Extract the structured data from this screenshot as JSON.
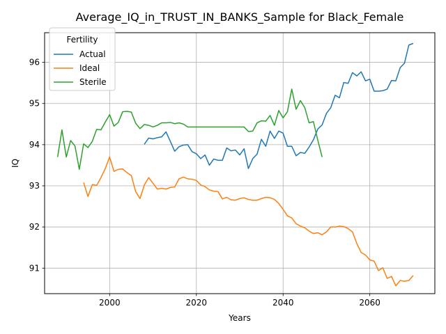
{
  "chart_data": {
    "type": "line",
    "title": "Average_IQ_in_TRUST_IN_BANKS_Sample for Black_Female",
    "xlabel": "Years",
    "ylabel": "IQ",
    "xlim": [
      1985,
      2075
    ],
    "ylim": [
      90.38,
      96.72
    ],
    "x_ticks": [
      2000,
      2020,
      2040,
      2060
    ],
    "y_ticks": [
      91,
      92,
      93,
      94,
      95,
      96
    ],
    "grid": true,
    "legend": {
      "title": "Fertility",
      "position": "upper-left"
    },
    "series": [
      {
        "name": "Actual",
        "color": "#1f77b4",
        "x": [
          2008,
          2009,
          2010,
          2011,
          2012,
          2013,
          2014,
          2015,
          2016,
          2017,
          2018,
          2019,
          2020,
          2021,
          2022,
          2023,
          2024,
          2025,
          2026,
          2027,
          2028,
          2029,
          2030,
          2031,
          2032,
          2033,
          2034,
          2035,
          2036,
          2037,
          2038,
          2039,
          2040,
          2041,
          2042,
          2043,
          2044,
          2045,
          2046,
          2047,
          2048,
          2049,
          2050,
          2051,
          2052,
          2053,
          2054,
          2055,
          2056,
          2057,
          2058,
          2059,
          2060,
          2061,
          2062,
          2063,
          2064,
          2065,
          2066,
          2067,
          2068,
          2069,
          2070
        ],
        "y": [
          94.01,
          94.16,
          94.14,
          94.17,
          94.19,
          94.31,
          94.08,
          93.84,
          93.95,
          93.99,
          94.0,
          93.83,
          93.78,
          93.66,
          93.75,
          93.5,
          93.65,
          93.62,
          93.62,
          93.92,
          93.85,
          93.87,
          93.75,
          93.9,
          93.42,
          93.66,
          93.77,
          94.13,
          93.96,
          94.33,
          94.15,
          94.33,
          94.28,
          93.96,
          93.96,
          93.73,
          93.81,
          93.79,
          93.94,
          94.12,
          94.38,
          94.48,
          94.76,
          94.9,
          95.2,
          95.14,
          95.51,
          95.49,
          95.75,
          95.67,
          95.77,
          95.55,
          95.59,
          95.3,
          95.3,
          95.31,
          95.35,
          95.56,
          95.55,
          95.87,
          95.98,
          96.42,
          96.46
        ]
      },
      {
        "name": "Ideal",
        "color": "#ff7f0e",
        "x": [
          1994,
          1995,
          1996,
          1997,
          1998,
          1999,
          2000,
          2001,
          2002,
          2003,
          2004,
          2005,
          2006,
          2007,
          2008,
          2009,
          2010,
          2011,
          2012,
          2013,
          2014,
          2015,
          2016,
          2017,
          2018,
          2019,
          2020,
          2021,
          2022,
          2023,
          2024,
          2025,
          2026,
          2027,
          2028,
          2029,
          2030,
          2031,
          2032,
          2033,
          2034,
          2035,
          2036,
          2037,
          2038,
          2039,
          2040,
          2041,
          2042,
          2043,
          2044,
          2045,
          2046,
          2047,
          2048,
          2049,
          2050,
          2051,
          2052,
          2053,
          2054,
          2055,
          2056,
          2057,
          2058,
          2059,
          2060,
          2061,
          2062,
          2063,
          2064,
          2065,
          2066,
          2067,
          2068,
          2069,
          2070
        ],
        "y": [
          93.08,
          92.74,
          93.03,
          93.01,
          93.2,
          93.42,
          93.7,
          93.35,
          93.4,
          93.41,
          93.32,
          93.25,
          92.86,
          92.69,
          93.02,
          93.2,
          93.06,
          92.92,
          92.94,
          92.92,
          92.96,
          92.97,
          93.17,
          93.21,
          93.17,
          93.16,
          93.13,
          93.02,
          92.98,
          92.9,
          92.87,
          92.86,
          92.68,
          92.72,
          92.66,
          92.65,
          92.69,
          92.71,
          92.67,
          92.65,
          92.65,
          92.69,
          92.72,
          92.71,
          92.67,
          92.57,
          92.43,
          92.27,
          92.22,
          92.08,
          92.02,
          91.98,
          91.9,
          91.84,
          91.86,
          91.81,
          91.88,
          92.0,
          92.0,
          92.02,
          92.01,
          91.96,
          91.88,
          91.6,
          91.38,
          91.32,
          91.2,
          91.17,
          90.94,
          91.01,
          90.75,
          90.8,
          90.57,
          90.7,
          90.68,
          90.7,
          90.82
        ]
      },
      {
        "name": "Sterile",
        "color": "#2ca02c",
        "x": [
          1988,
          1989,
          1990,
          1991,
          1992,
          1993,
          1994,
          1995,
          1996,
          1997,
          1998,
          1999,
          2000,
          2001,
          2002,
          2003,
          2004,
          2005,
          2006,
          2007,
          2008,
          2009,
          2010,
          2011,
          2012,
          2013,
          2014,
          2015,
          2016,
          2017,
          2018,
          2019,
          2020,
          2021,
          2022,
          2023,
          2024,
          2025,
          2026,
          2027,
          2028,
          2029,
          2030,
          2031,
          2032,
          2033,
          2034,
          2035,
          2036,
          2037,
          2038,
          2039,
          2040,
          2041,
          2042,
          2043,
          2044,
          2045,
          2046,
          2047,
          2048,
          2049
        ],
        "y": [
          93.7,
          94.36,
          93.7,
          94.1,
          93.97,
          93.4,
          94.02,
          93.93,
          94.08,
          94.37,
          94.36,
          94.55,
          94.73,
          94.45,
          94.54,
          94.8,
          94.81,
          94.79,
          94.52,
          94.39,
          94.49,
          94.47,
          94.43,
          94.47,
          94.53,
          94.53,
          94.54,
          94.51,
          94.53,
          94.5,
          94.43,
          94.43,
          94.43,
          94.43,
          94.43,
          94.43,
          94.43,
          94.43,
          94.43,
          94.43,
          94.43,
          94.43,
          94.43,
          94.43,
          94.32,
          94.33,
          94.53,
          94.58,
          94.57,
          94.71,
          94.47,
          94.83,
          94.65,
          94.8,
          95.35,
          94.86,
          95.07,
          94.9,
          94.53,
          94.56,
          94.11,
          93.7
        ]
      }
    ]
  }
}
